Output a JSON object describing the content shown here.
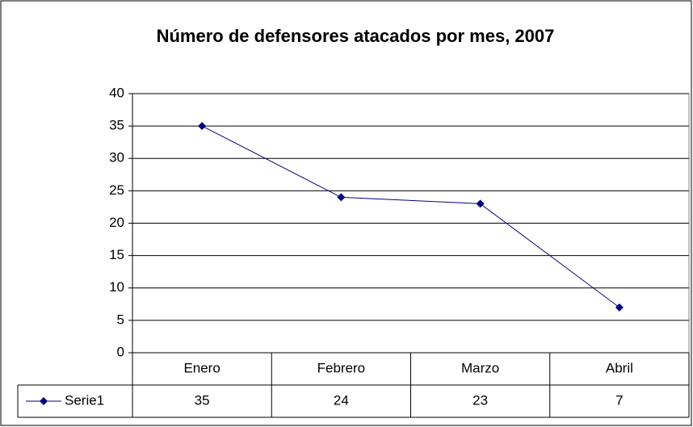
{
  "chart_data": {
    "type": "line",
    "title": "Número de defensores atacados por mes, 2007",
    "categories": [
      "Enero",
      "Febrero",
      "Marzo",
      "Abril"
    ],
    "series": [
      {
        "name": "Serie1",
        "color": "#000080",
        "values": [
          35,
          24,
          23,
          7
        ]
      }
    ],
    "ylim": [
      0,
      40
    ],
    "yticks": [
      0,
      5,
      10,
      15,
      20,
      25,
      30,
      35,
      40
    ],
    "grid": true,
    "data_table": true
  }
}
